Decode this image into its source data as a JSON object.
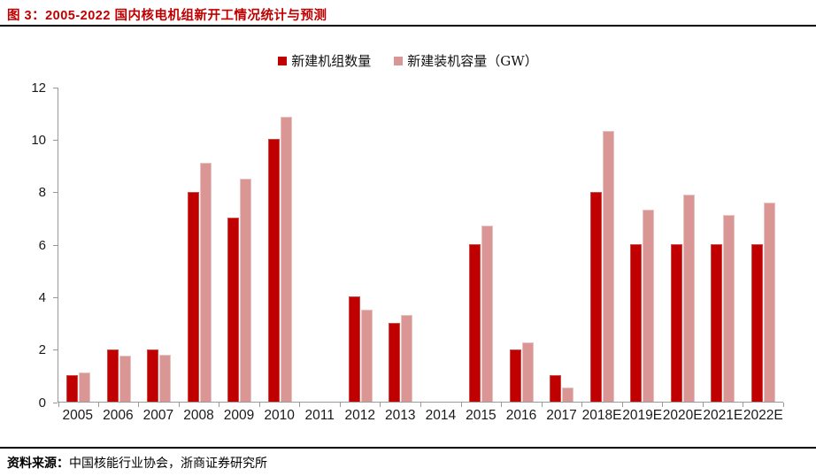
{
  "figure": {
    "title": "图 3：2005-2022 国内核电机组新开工情况统计与预测",
    "source_label": "资料来源：",
    "source_text": "中国核能行业协会，浙商证券研究所"
  },
  "colors": {
    "title": "#C00000",
    "axis": "#999999",
    "series_units": "#C00000",
    "series_capacity": "#D99694"
  },
  "chart_data": {
    "type": "bar",
    "title": "2005-2022 国内核电机组新开工情况统计与预测",
    "categories": [
      "2005",
      "2006",
      "2007",
      "2008",
      "2009",
      "2010",
      "2011",
      "2012",
      "2013",
      "2014",
      "2015",
      "2016",
      "2017",
      "2018E",
      "2019E",
      "2020E",
      "2021E",
      "2022E"
    ],
    "series": [
      {
        "name": "新建机组数量",
        "color": "#C00000",
        "values": [
          1,
          2,
          2,
          8,
          7,
          10,
          0,
          4,
          3,
          0,
          6,
          2,
          1,
          8,
          6,
          6,
          6,
          6
        ]
      },
      {
        "name": "新建装机容量（GW）",
        "color": "#D99694",
        "values": [
          1.1,
          1.75,
          1.8,
          9.1,
          8.5,
          10.85,
          0,
          3.5,
          3.3,
          0,
          6.7,
          2.25,
          0.55,
          10.3,
          7.3,
          7.9,
          7.1,
          7.6
        ]
      }
    ],
    "xlabel": "",
    "ylabel": "",
    "ylim": [
      0,
      12
    ],
    "yticks": [
      0,
      2,
      4,
      6,
      8,
      10,
      12
    ],
    "grid": false,
    "legend_position": "top-center"
  }
}
